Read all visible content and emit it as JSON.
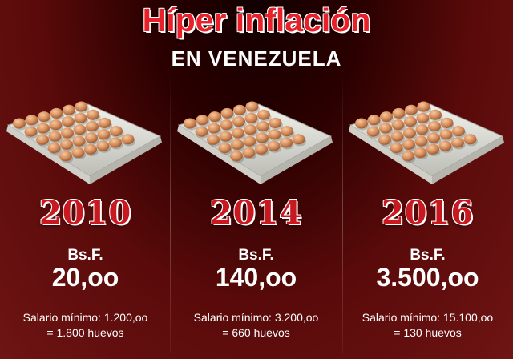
{
  "header": {
    "title": "Híper inflación",
    "subtitle": "EN VENEZUELA"
  },
  "columns": [
    {
      "year": "2010",
      "currency": "Bs.F.",
      "price": "20,oo",
      "salary": "Salario mínimo: 1.200,oo",
      "eggs": "= 1.800 huevos"
    },
    {
      "year": "2014",
      "currency": "Bs.F.",
      "price": "140,oo",
      "salary": "Salario mínimo: 3.200,oo",
      "eggs": "= 660 huevos"
    },
    {
      "year": "2016",
      "currency": "Bs.F.",
      "price": "3.500,oo",
      "salary": "Salario mínimo: 15.100,oo",
      "eggs": "= 130 huevos"
    }
  ],
  "colors": {
    "title_red": "#e8202a",
    "year_red": "#c81820",
    "background_dark": "#2a0000",
    "background_mid": "#6e1414",
    "text_white": "#ffffff"
  },
  "images": {
    "egg_tray": "egg-tray-image"
  }
}
